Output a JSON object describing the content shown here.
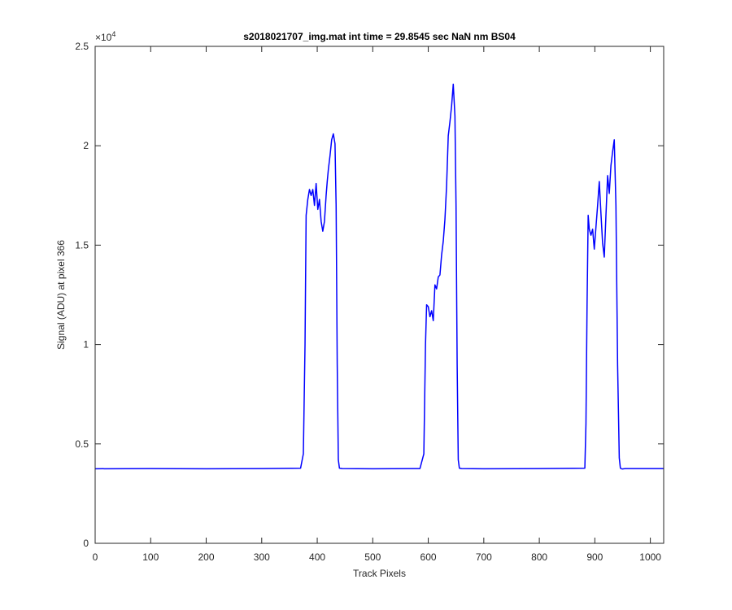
{
  "chart_data": {
    "type": "line",
    "title": "s2018021707_img.mat int time = 29.8545 sec  NaN nm BS04",
    "xlabel": "Track Pixels",
    "ylabel": "Signal (ADU) at pixel 366",
    "xlim": [
      0,
      1024
    ],
    "ylim": [
      0,
      25000
    ],
    "x_ticks": [
      0,
      100,
      200,
      300,
      400,
      500,
      600,
      700,
      800,
      900,
      1000
    ],
    "x_tick_labels": [
      "0",
      "100",
      "200",
      "300",
      "400",
      "500",
      "600",
      "700",
      "800",
      "900",
      "1000"
    ],
    "y_ticks": [
      0,
      5000,
      10000,
      15000,
      20000,
      25000
    ],
    "y_tick_labels": [
      "0",
      "0.5",
      "1",
      "1.5",
      "2",
      "2.5"
    ],
    "y_exponent_label": "×10",
    "y_exponent_power": "4",
    "grid": false,
    "series": [
      {
        "color": "#0000ff",
        "x": [
          0,
          100,
          200,
          300,
          370,
          375,
          378,
          380,
          383,
          386,
          389,
          392,
          395,
          398,
          401,
          404,
          407,
          410,
          413,
          416,
          418,
          420,
          423,
          426,
          429,
          432,
          434,
          436,
          438,
          440,
          445,
          500,
          585,
          592,
          595,
          597,
          600,
          603,
          606,
          609,
          612,
          615,
          618,
          621,
          624,
          627,
          630,
          633,
          636,
          639,
          642,
          645,
          648,
          650,
          652,
          654,
          656,
          660,
          700,
          800,
          882,
          884,
          886,
          888,
          890,
          893,
          896,
          899,
          902,
          905,
          908,
          911,
          914,
          917,
          920,
          923,
          926,
          929,
          932,
          935,
          938,
          941,
          944,
          946,
          948,
          950,
          952,
          955,
          1000,
          1024
        ],
        "y": [
          3750,
          3760,
          3750,
          3760,
          3780,
          4500,
          10000,
          16500,
          17300,
          17800,
          17500,
          17800,
          17000,
          18100,
          16800,
          17300,
          16200,
          15700,
          16200,
          17500,
          18200,
          18800,
          19500,
          20300,
          20600,
          20100,
          17000,
          9000,
          4200,
          3780,
          3760,
          3750,
          3760,
          4500,
          10000,
          12000,
          11900,
          11400,
          11700,
          11200,
          13000,
          12800,
          13400,
          13500,
          14500,
          15200,
          16300,
          18000,
          20500,
          21200,
          22000,
          23100,
          21500,
          17000,
          9000,
          4200,
          3780,
          3760,
          3750,
          3760,
          3780,
          6000,
          12000,
          16500,
          15800,
          15500,
          15800,
          14800,
          15900,
          17000,
          18200,
          16600,
          15100,
          14400,
          16500,
          18500,
          17600,
          19000,
          19700,
          20300,
          17000,
          9000,
          4300,
          3780,
          3750,
          3740,
          3750,
          3760,
          3760,
          3760
        ]
      }
    ]
  }
}
